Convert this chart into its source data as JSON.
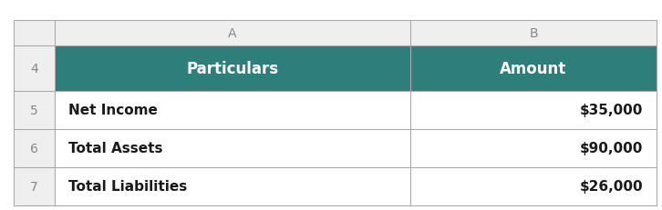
{
  "col_headers": [
    "A",
    "B"
  ],
  "row_numbers": [
    "4",
    "5",
    "6",
    "7"
  ],
  "header_row": [
    "Particulars",
    "Amount"
  ],
  "data_rows": [
    [
      "Net Income",
      "$35,000"
    ],
    [
      "Total Assets",
      "$90,000"
    ],
    [
      "Total Liabilities",
      "$26,000"
    ]
  ],
  "header_bg_color": "#2E7F7C",
  "header_text_color": "#FFFFFF",
  "data_text_color": "#1A1A1A",
  "row_number_color": "#888888",
  "col_letter_color": "#888888",
  "grid_color": "#AAAAAA",
  "bg_color": "#FFFFFF",
  "row_header_bg": "#EFEFEF",
  "col_header_bg": "#EFEFEF",
  "figsize": [
    7.26,
    2.32
  ],
  "dpi": 100
}
